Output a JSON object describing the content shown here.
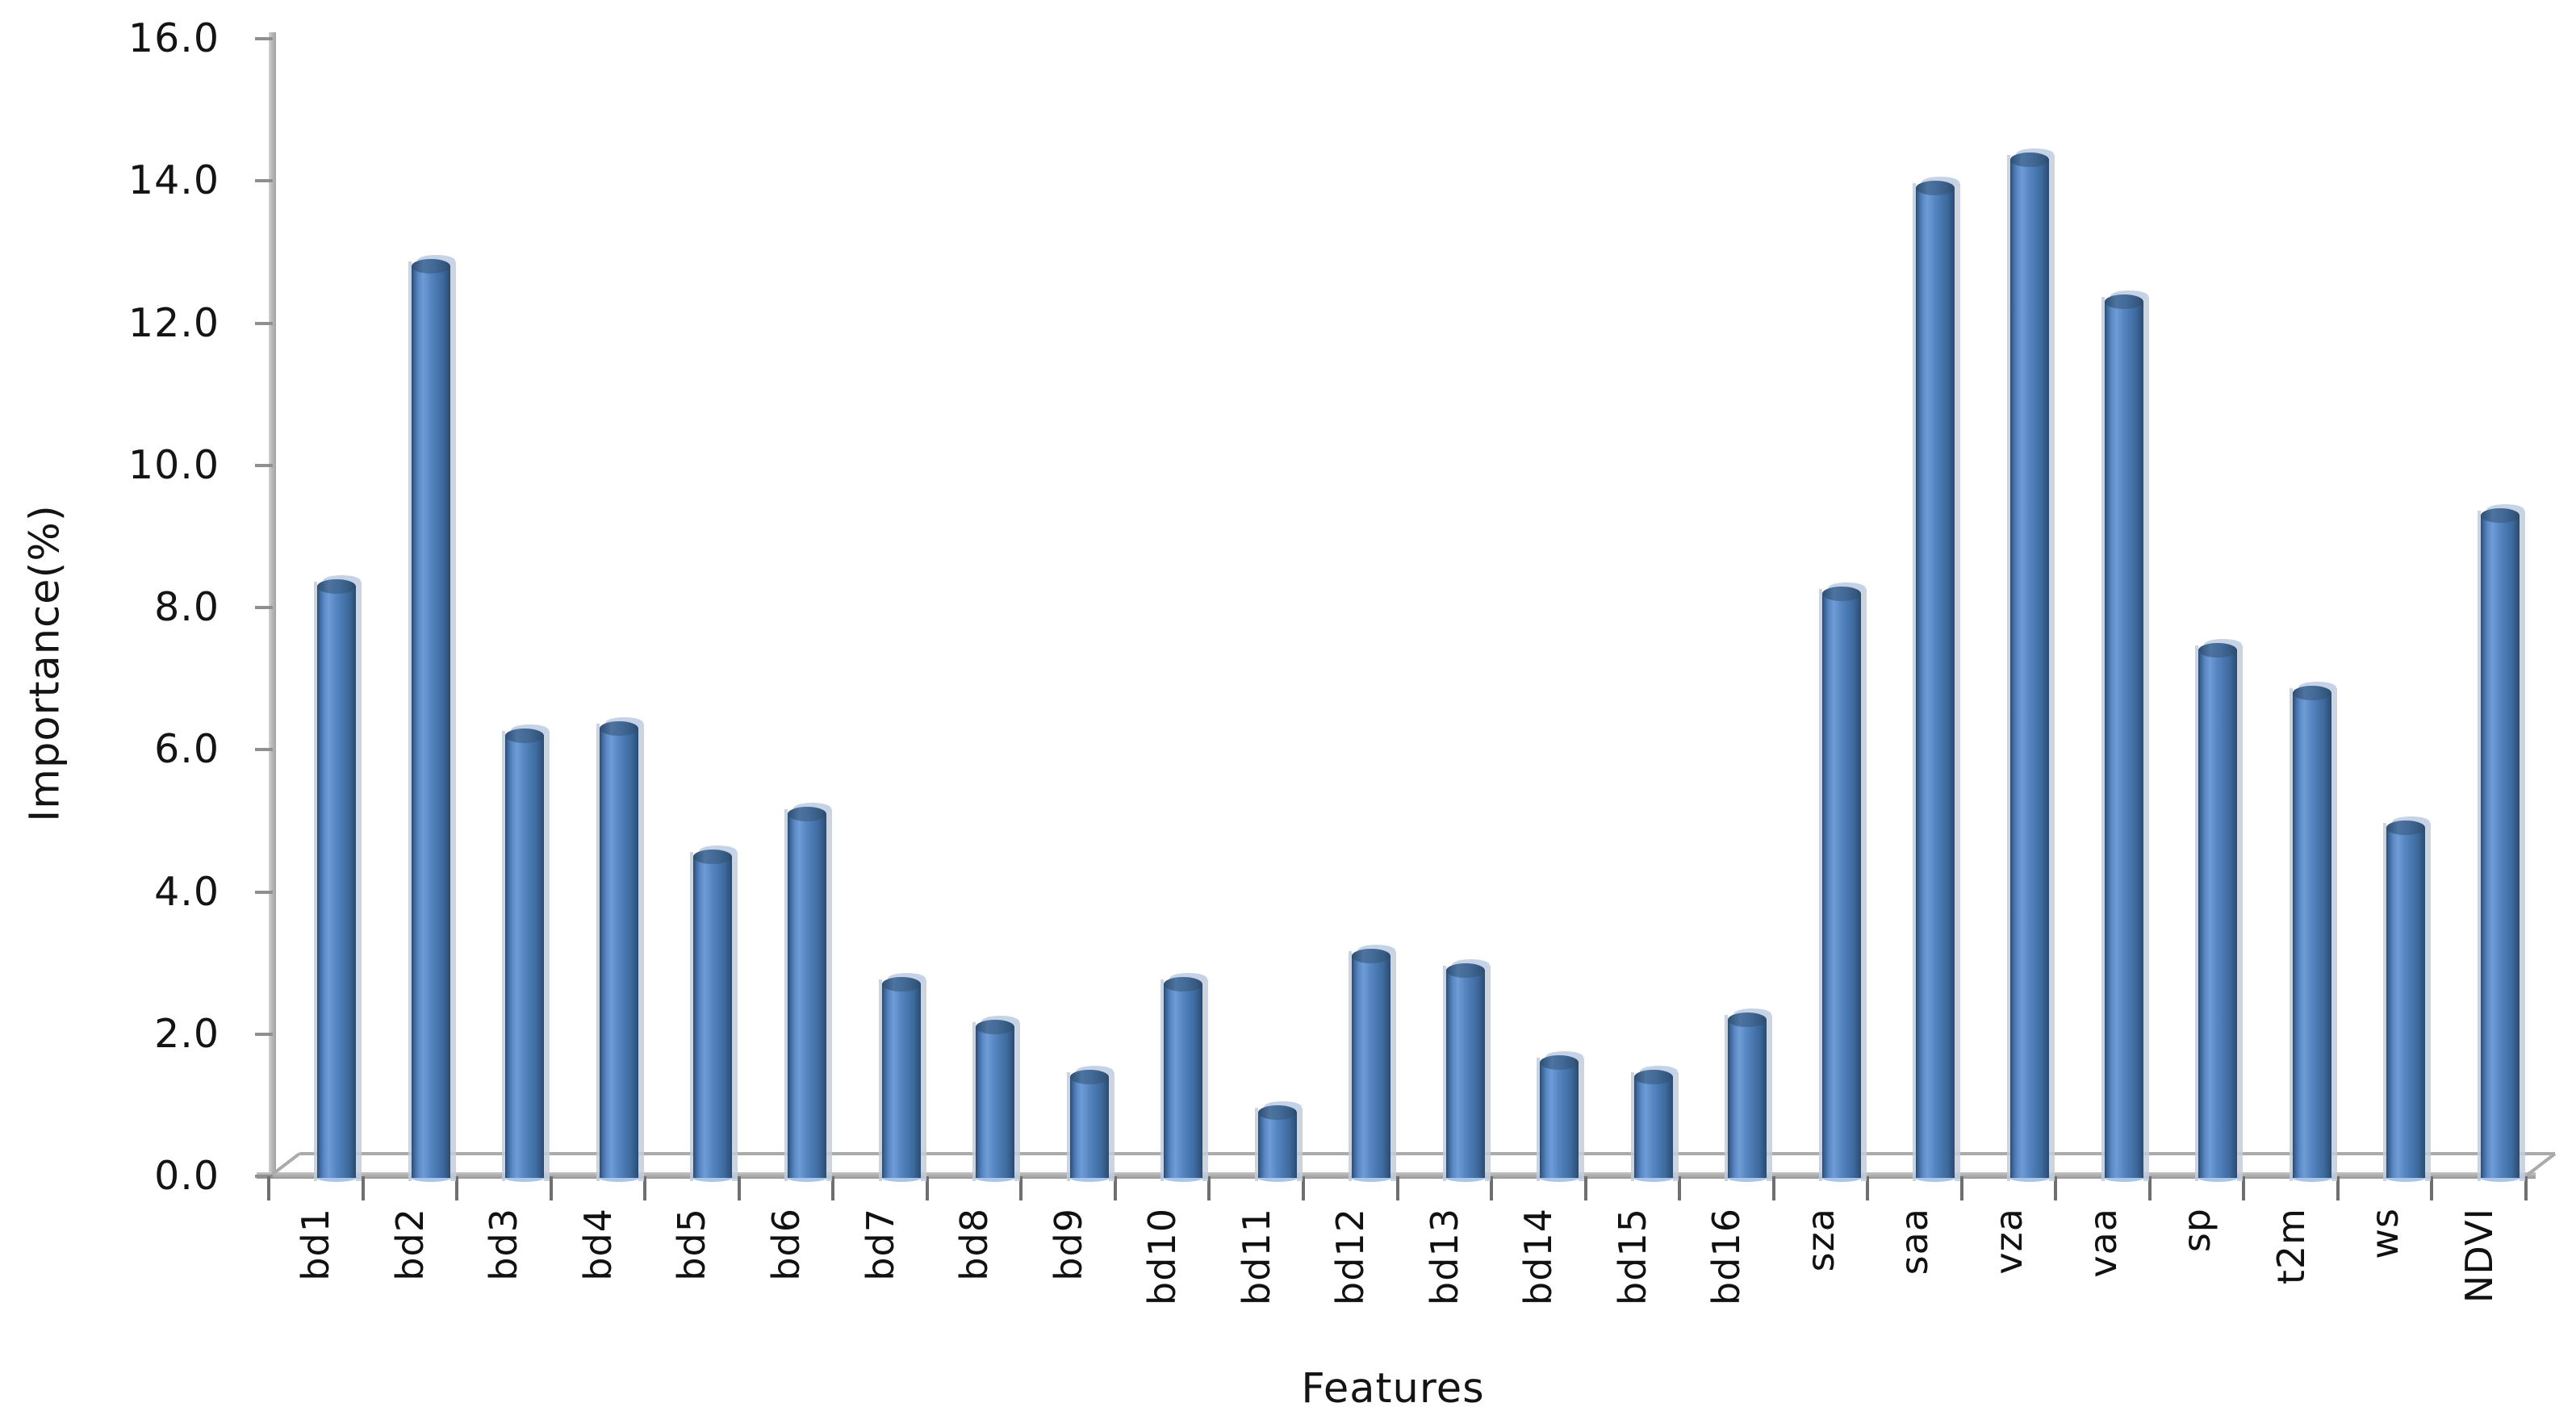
{
  "figure": {
    "background": "#ffffff",
    "text_color": "#141414",
    "axis_color": "#a6a6a6"
  },
  "chart_data": {
    "type": "bar",
    "title": "",
    "xlabel": "Features",
    "ylabel": "Importance(%)",
    "categories": [
      "bd1",
      "bd2",
      "bd3",
      "bd4",
      "bd5",
      "bd6",
      "bd7",
      "bd8",
      "bd9",
      "bd10",
      "bd11",
      "bd12",
      "bd13",
      "bd14",
      "bd15",
      "bd16",
      "sza",
      "saa",
      "vza",
      "vaa",
      "sp",
      "t2m",
      "ws",
      "NDVI"
    ],
    "values": [
      8.4,
      12.9,
      6.3,
      6.4,
      4.6,
      5.2,
      2.8,
      2.2,
      1.5,
      2.8,
      1.0,
      3.2,
      3.0,
      1.7,
      1.5,
      2.3,
      8.3,
      14.0,
      14.4,
      12.4,
      7.5,
      6.9,
      5.0,
      9.4
    ],
    "ylim": [
      0,
      16
    ],
    "ytick_interval": 2.0,
    "ytick_labels": [
      "16.0",
      "14.0",
      "12.0",
      "10.0",
      "8.0",
      "6.0",
      "4.0",
      "2.0",
      "0.0"
    ],
    "grid": false,
    "legend": "none",
    "bar_orientation": "vertical-cylinder-3d",
    "style": {
      "bar_fill_main": "#4f81bd",
      "bar_highlight": "#6f9cd6",
      "bar_edge_dark": "#2a4a70",
      "bar_halo": "#c3cdda",
      "bar_cap_light": "#c6d3e6",
      "bar_foot": "#a9c6e8"
    }
  }
}
